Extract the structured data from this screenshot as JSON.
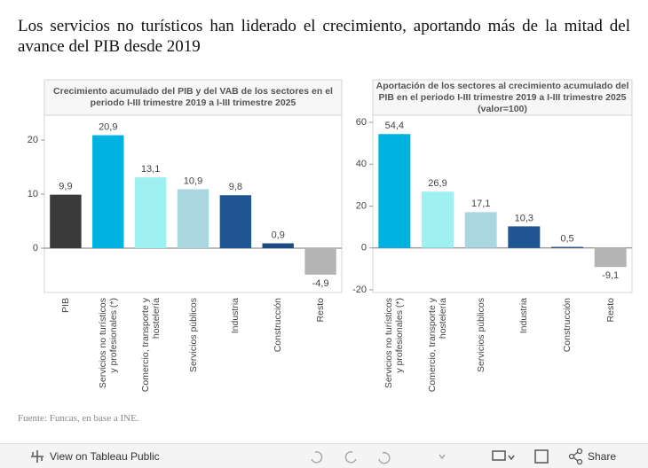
{
  "header": {
    "title": "Los servicios no turísticos han liderado el crecimiento, aportando más de la mitad del avance del PIB desde 2019"
  },
  "chart_data": [
    {
      "type": "bar",
      "title": "Crecimiento acumulado del PIB y del VAB de los sectores en el periodo I-III trimestre 2019 a I-III trimestre 2025",
      "categories": [
        "PIB",
        "Servicios no turísticos y profesionales (*)",
        "Comercio, transporte y hostelería",
        "Servicios públicos",
        "Industria",
        "Construcción",
        "Resto"
      ],
      "values": [
        9.9,
        20.9,
        13.1,
        10.9,
        9.8,
        0.9,
        -4.9
      ],
      "value_labels": [
        "9,9",
        "20,9",
        "13,1",
        "10,9",
        "9,8",
        "0,9",
        "-4,9"
      ],
      "colors": [
        "#3a3a3a",
        "#00b2e2",
        "#9ff0f0",
        "#a9d6df",
        "#1f5592",
        "#1c4a82",
        "#b4b4b4"
      ],
      "ylim": [
        -8.2,
        24.6
      ],
      "yticks": [
        0,
        10,
        20
      ]
    },
    {
      "type": "bar",
      "title": "Aportación de los sectores al crecimiento acumulado del PIB en el periodo I-III trimestre 2019 a I-III trimestre 2025 (valor=100)",
      "categories": [
        "Servicios no turísticos y profesionales (*)",
        "Comercio, transporte y hostelería",
        "Servicios públicos",
        "Industria",
        "Construcción",
        "Resto"
      ],
      "values": [
        54.4,
        26.9,
        17.1,
        10.3,
        0.5,
        -9.1
      ],
      "value_labels": [
        "54,4",
        "26,9",
        "17,1",
        "10,3",
        "0,5",
        "-9,1"
      ],
      "colors": [
        "#00b2e2",
        "#9ff0f0",
        "#a9d6df",
        "#1f5592",
        "#1c4a82",
        "#b4b4b4"
      ],
      "ylim": [
        -21.3,
        63.4
      ],
      "yticks": [
        -20,
        0,
        20,
        40,
        60
      ]
    }
  ],
  "footer": {
    "source": "Fuente: Funcas, en base a INE."
  },
  "toolbar": {
    "view": "View on Tableau Public",
    "share": "Share"
  }
}
